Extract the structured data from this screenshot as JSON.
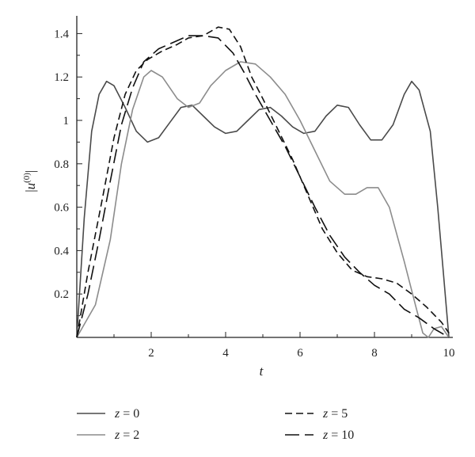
{
  "chart_data": {
    "type": "line",
    "xlabel": "t",
    "ylabel": "|u(0)|",
    "ylabel_parts": {
      "base": "u",
      "sup": "(0)"
    },
    "xlim": [
      0,
      10.2
    ],
    "ylim": [
      0,
      1.45
    ],
    "xticks": [
      2,
      4,
      6,
      8,
      10
    ],
    "yticks": [
      0.2,
      0.4,
      0.6,
      0.8,
      1,
      1.2,
      1.4
    ],
    "ytick_labels": [
      "0.2",
      "0.4",
      "0.6",
      "0.8",
      "1",
      "1.2",
      "1.4"
    ],
    "grid": false,
    "legend_position": "bottom",
    "series": [
      {
        "name": "z = 0",
        "legend_var": "z",
        "legend_val": "= 0",
        "color": "#4a4a4a",
        "dash": "solid",
        "points": [
          [
            0,
            0
          ],
          [
            0.2,
            0.55
          ],
          [
            0.4,
            0.95
          ],
          [
            0.6,
            1.12
          ],
          [
            0.8,
            1.18
          ],
          [
            1.0,
            1.16
          ],
          [
            1.3,
            1.06
          ],
          [
            1.6,
            0.95
          ],
          [
            1.9,
            0.9
          ],
          [
            2.2,
            0.92
          ],
          [
            2.5,
            0.99
          ],
          [
            2.8,
            1.06
          ],
          [
            3.1,
            1.07
          ],
          [
            3.4,
            1.02
          ],
          [
            3.7,
            0.97
          ],
          [
            4.0,
            0.94
          ],
          [
            4.3,
            0.95
          ],
          [
            4.6,
            1.0
          ],
          [
            4.9,
            1.05
          ],
          [
            5.2,
            1.06
          ],
          [
            5.5,
            1.02
          ],
          [
            5.8,
            0.97
          ],
          [
            6.1,
            0.94
          ],
          [
            6.4,
            0.95
          ],
          [
            6.7,
            1.02
          ],
          [
            7.0,
            1.07
          ],
          [
            7.3,
            1.06
          ],
          [
            7.6,
            0.98
          ],
          [
            7.9,
            0.91
          ],
          [
            8.2,
            0.91
          ],
          [
            8.5,
            0.98
          ],
          [
            8.8,
            1.12
          ],
          [
            9.0,
            1.18
          ],
          [
            9.2,
            1.14
          ],
          [
            9.5,
            0.95
          ],
          [
            9.7,
            0.6
          ],
          [
            9.85,
            0.3
          ],
          [
            10.0,
            0
          ]
        ]
      },
      {
        "name": "z = 2",
        "legend_var": "z",
        "legend_val": "= 2",
        "color": "#8c8c8c",
        "dash": "solid",
        "points": [
          [
            0,
            0
          ],
          [
            0.5,
            0.15
          ],
          [
            0.9,
            0.45
          ],
          [
            1.2,
            0.8
          ],
          [
            1.5,
            1.05
          ],
          [
            1.8,
            1.2
          ],
          [
            2.0,
            1.23
          ],
          [
            2.3,
            1.2
          ],
          [
            2.7,
            1.1
          ],
          [
            3.0,
            1.06
          ],
          [
            3.3,
            1.08
          ],
          [
            3.6,
            1.16
          ],
          [
            4.0,
            1.23
          ],
          [
            4.4,
            1.27
          ],
          [
            4.8,
            1.26
          ],
          [
            5.2,
            1.2
          ],
          [
            5.6,
            1.12
          ],
          [
            6.0,
            1.0
          ],
          [
            6.4,
            0.86
          ],
          [
            6.8,
            0.72
          ],
          [
            7.2,
            0.66
          ],
          [
            7.5,
            0.66
          ],
          [
            7.8,
            0.69
          ],
          [
            8.1,
            0.69
          ],
          [
            8.4,
            0.6
          ],
          [
            8.8,
            0.35
          ],
          [
            9.1,
            0.15
          ],
          [
            9.3,
            0.02
          ],
          [
            9.45,
            0
          ],
          [
            9.6,
            0.04
          ],
          [
            9.8,
            0.05
          ],
          [
            10.0,
            0
          ]
        ]
      },
      {
        "name": "z = 5",
        "legend_var": "z",
        "legend_val": "= 5",
        "color": "#111111",
        "dash": "short",
        "points": [
          [
            0,
            0
          ],
          [
            0.3,
            0.3
          ],
          [
            0.7,
            0.65
          ],
          [
            1.0,
            0.92
          ],
          [
            1.3,
            1.12
          ],
          [
            1.6,
            1.23
          ],
          [
            1.9,
            1.28
          ],
          [
            2.3,
            1.32
          ],
          [
            2.7,
            1.35
          ],
          [
            3.0,
            1.38
          ],
          [
            3.4,
            1.39
          ],
          [
            3.8,
            1.43
          ],
          [
            4.1,
            1.42
          ],
          [
            4.4,
            1.34
          ],
          [
            4.7,
            1.2
          ],
          [
            5.0,
            1.1
          ],
          [
            5.4,
            0.96
          ],
          [
            5.8,
            0.82
          ],
          [
            6.2,
            0.66
          ],
          [
            6.6,
            0.5
          ],
          [
            7.0,
            0.39
          ],
          [
            7.4,
            0.31
          ],
          [
            7.8,
            0.28
          ],
          [
            8.2,
            0.27
          ],
          [
            8.6,
            0.25
          ],
          [
            9.0,
            0.2
          ],
          [
            9.4,
            0.14
          ],
          [
            9.8,
            0.07
          ],
          [
            10.0,
            0.02
          ]
        ]
      },
      {
        "name": "z = 10",
        "legend_var": "z",
        "legend_val": "= 10",
        "color": "#111111",
        "dash": "long",
        "points": [
          [
            0,
            0
          ],
          [
            0.3,
            0.2
          ],
          [
            0.6,
            0.45
          ],
          [
            0.9,
            0.72
          ],
          [
            1.2,
            0.98
          ],
          [
            1.5,
            1.15
          ],
          [
            1.8,
            1.27
          ],
          [
            2.2,
            1.33
          ],
          [
            2.6,
            1.36
          ],
          [
            3.0,
            1.39
          ],
          [
            3.4,
            1.39
          ],
          [
            3.8,
            1.38
          ],
          [
            4.2,
            1.31
          ],
          [
            4.5,
            1.22
          ],
          [
            4.8,
            1.12
          ],
          [
            5.2,
            1.0
          ],
          [
            5.6,
            0.88
          ],
          [
            6.0,
            0.74
          ],
          [
            6.4,
            0.6
          ],
          [
            6.8,
            0.47
          ],
          [
            7.2,
            0.37
          ],
          [
            7.6,
            0.3
          ],
          [
            8.0,
            0.24
          ],
          [
            8.4,
            0.2
          ],
          [
            8.8,
            0.13
          ],
          [
            9.2,
            0.09
          ],
          [
            9.6,
            0.04
          ],
          [
            10.0,
            0
          ]
        ]
      }
    ]
  }
}
